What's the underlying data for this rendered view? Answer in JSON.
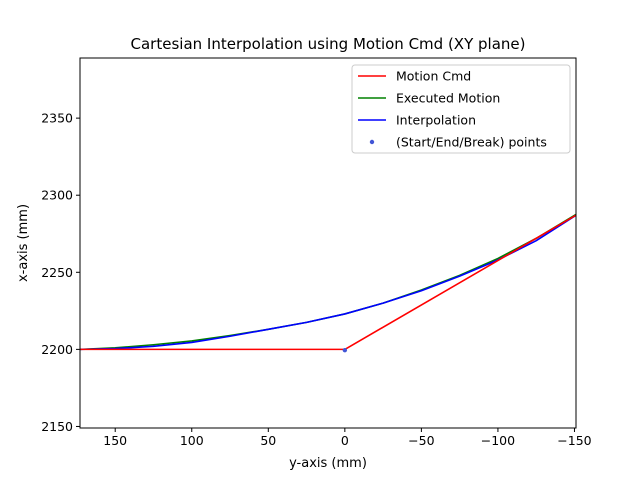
{
  "chart_data": {
    "type": "line",
    "title": "Cartesian Interpolation using Motion Cmd (XY plane)",
    "xlabel": "y-axis (mm)",
    "ylabel": "x-axis (mm)",
    "xlim": [
      173,
      -151
    ],
    "ylim": [
      2149,
      2389
    ],
    "x_inverted": true,
    "grid": false,
    "legend_position": "upper right",
    "x_ticks": [
      150,
      100,
      50,
      0,
      -50,
      -100,
      -150
    ],
    "x_tick_labels": [
      "150",
      "100",
      "50",
      "0",
      "−50",
      "−100",
      "−150"
    ],
    "y_ticks": [
      2150,
      2200,
      2250,
      2300,
      2350
    ],
    "y_tick_labels": [
      "2150",
      "2200",
      "2250",
      "2300",
      "2350"
    ],
    "series": [
      {
        "name": "Executed Motion",
        "color": "#008000",
        "style": "line",
        "x": [
          173,
          150,
          125,
          100,
          75,
          50,
          25,
          0,
          -25,
          -50,
          -75,
          -100,
          -125,
          -151
        ],
        "y": [
          2200,
          2201,
          2203,
          2205.5,
          2209,
          2213,
          2217.5,
          2223,
          2230,
          2238.5,
          2248,
          2259,
          2272,
          2287.5
        ]
      },
      {
        "name": "Interpolation",
        "color": "#0000ff",
        "style": "line",
        "x": [
          173,
          150,
          125,
          100,
          75,
          50,
          25,
          0,
          -25,
          -50,
          -75,
          -100,
          -125,
          -151
        ],
        "y": [
          2200,
          2200.5,
          2202,
          2204.5,
          2208.5,
          2213,
          2217.5,
          2223,
          2230,
          2238,
          2247.5,
          2258,
          2270.5,
          2287
        ]
      },
      {
        "name": "Motion Cmd",
        "color": "#ff0000",
        "style": "line",
        "x": [
          173,
          0,
          -151
        ],
        "y": [
          2200,
          2200,
          2287
        ]
      },
      {
        "name": "(Start/End/Break) points",
        "color": "#4155d6",
        "style": "scatter",
        "x": [
          0
        ],
        "y": [
          2199.5
        ]
      }
    ],
    "legend": [
      "Motion Cmd",
      "Executed Motion",
      "Interpolation",
      "(Start/End/Break) points"
    ]
  }
}
